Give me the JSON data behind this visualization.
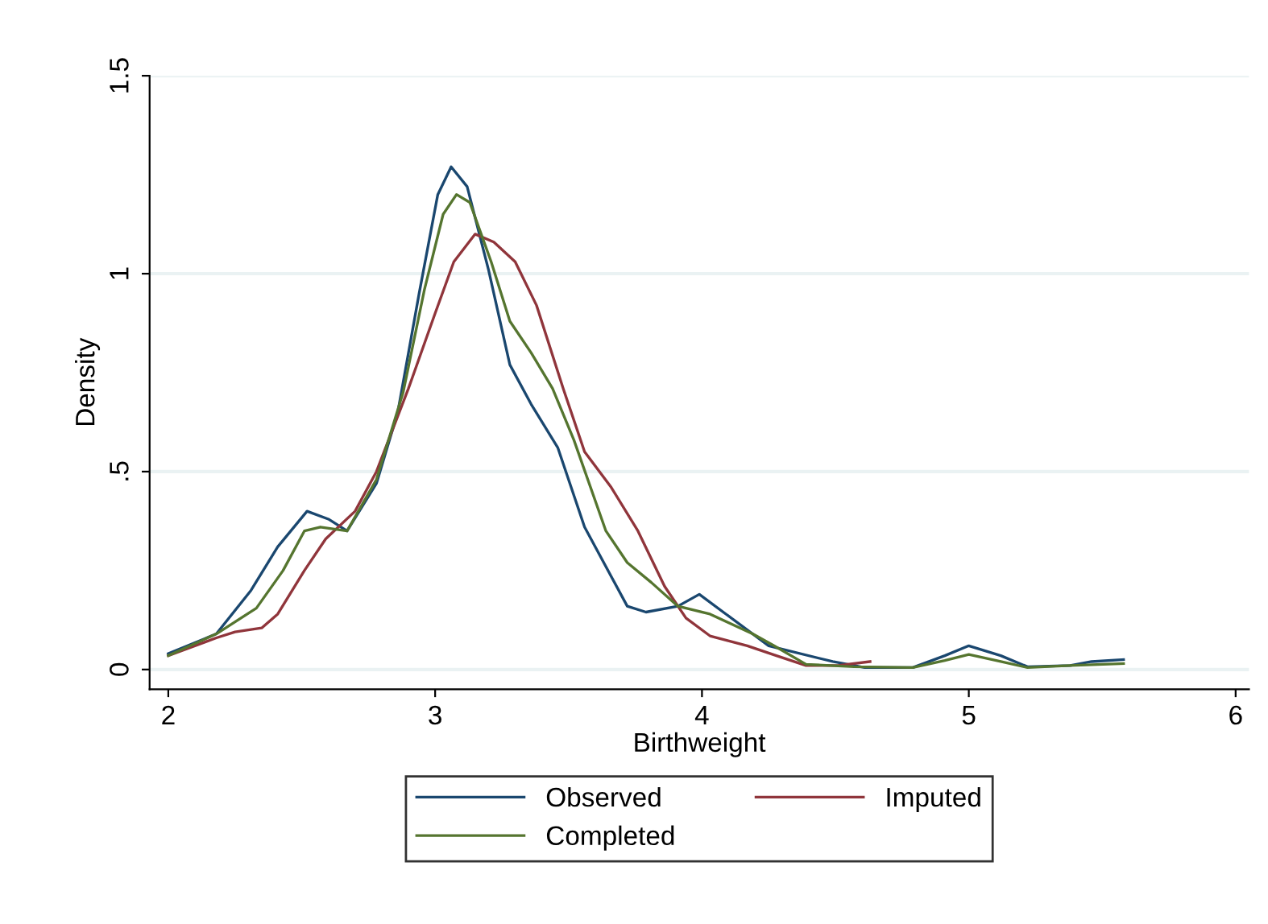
{
  "chart_data": {
    "type": "line",
    "xlabel": "Birthweight",
    "ylabel": "Density",
    "xlim": [
      1.93,
      6.05
    ],
    "xticks": [
      2,
      3,
      4,
      5,
      6
    ],
    "ylim": [
      -0.05,
      1.5
    ],
    "yticks": [
      0,
      {
        "value": 0.5,
        "label": ".5"
      },
      1,
      1.5
    ],
    "grid": "y",
    "legend": "bottom",
    "marker": "none",
    "line_style": "solid",
    "series": [
      {
        "name": "Observed",
        "color": "#1a476f",
        "x": [
          2.0,
          2.18,
          2.31,
          2.41,
          2.52,
          2.6,
          2.67,
          2.78,
          2.86,
          2.94,
          3.01,
          3.06,
          3.12,
          3.2,
          3.28,
          3.36,
          3.46,
          3.56,
          3.72,
          3.79,
          3.91,
          3.99,
          4.09,
          4.25,
          4.49,
          4.61,
          4.79,
          4.91,
          5.0,
          5.12,
          5.22,
          5.38,
          5.46,
          5.58
        ],
        "values": [
          0.04,
          0.09,
          0.2,
          0.31,
          0.4,
          0.38,
          0.35,
          0.47,
          0.65,
          0.95,
          1.2,
          1.27,
          1.22,
          1.01,
          0.77,
          0.67,
          0.56,
          0.36,
          0.16,
          0.145,
          0.16,
          0.19,
          0.14,
          0.06,
          0.02,
          0.005,
          0.005,
          0.035,
          0.06,
          0.035,
          0.007,
          0.01,
          0.02,
          0.025
        ]
      },
      {
        "name": "Imputed",
        "color": "#90353b",
        "x": [
          2.0,
          2.18,
          2.25,
          2.35,
          2.41,
          2.51,
          2.59,
          2.7,
          2.78,
          2.9,
          3.0,
          3.07,
          3.15,
          3.22,
          3.3,
          3.38,
          3.48,
          3.56,
          3.66,
          3.76,
          3.86,
          3.94,
          4.03,
          4.17,
          4.27,
          4.39,
          4.51,
          4.63
        ],
        "values": [
          0.035,
          0.08,
          0.095,
          0.105,
          0.14,
          0.25,
          0.33,
          0.4,
          0.5,
          0.71,
          0.9,
          1.03,
          1.1,
          1.08,
          1.03,
          0.92,
          0.71,
          0.55,
          0.46,
          0.35,
          0.21,
          0.13,
          0.085,
          0.06,
          0.037,
          0.01,
          0.01,
          0.02
        ]
      },
      {
        "name": "Completed",
        "color": "#55752f",
        "x": [
          2.0,
          2.18,
          2.33,
          2.43,
          2.51,
          2.57,
          2.67,
          2.78,
          2.88,
          2.96,
          3.03,
          3.08,
          3.13,
          3.21,
          3.28,
          3.36,
          3.44,
          3.52,
          3.64,
          3.72,
          3.81,
          3.91,
          4.03,
          4.19,
          4.27,
          4.39,
          4.57,
          4.79,
          4.91,
          5.0,
          5.12,
          5.22,
          5.38,
          5.58
        ],
        "values": [
          0.035,
          0.09,
          0.155,
          0.25,
          0.35,
          0.36,
          0.35,
          0.48,
          0.7,
          0.96,
          1.15,
          1.2,
          1.18,
          1.03,
          0.88,
          0.8,
          0.71,
          0.58,
          0.35,
          0.27,
          0.22,
          0.16,
          0.14,
          0.09,
          0.06,
          0.013,
          0.007,
          0.005,
          0.023,
          0.038,
          0.02,
          0.005,
          0.01,
          0.015
        ]
      }
    ]
  }
}
